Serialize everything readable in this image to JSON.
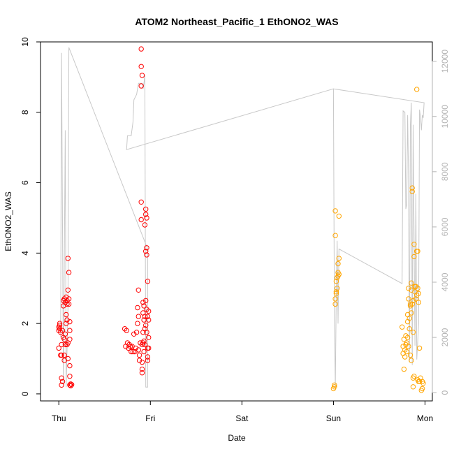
{
  "chart_data": {
    "type": "scatter",
    "title": "ATOM2 Northeast_Pacific_1 EthONO2_WAS",
    "xlabel": "Date",
    "ylabel": "EthONO2_WAS",
    "x_ticks": [
      "Thu",
      "Fri",
      "Sat",
      "Sun",
      "Mon"
    ],
    "xlim_days": [
      -0.2,
      4.08
    ],
    "y_left_lim": [
      -0.2,
      10.0
    ],
    "y_left_ticks": [
      0,
      2,
      4,
      6,
      8,
      10
    ],
    "y_right_lim": [
      -300,
      12700
    ],
    "y_right_ticks": [
      0,
      2000,
      4000,
      6000,
      8000,
      10000,
      12000
    ],
    "series": [
      {
        "color": "#ff0000",
        "marker": "open-circle",
        "points": [
          [
            0.0,
            1.9
          ],
          [
            0.0,
            1.8
          ],
          [
            0.0,
            1.3
          ],
          [
            0.01,
            1.85
          ],
          [
            0.01,
            1.95
          ],
          [
            0.01,
            2.0
          ],
          [
            0.02,
            1.1
          ],
          [
            0.02,
            1.75
          ],
          [
            0.03,
            1.4
          ],
          [
            0.03,
            1.1
          ],
          [
            0.03,
            0.45
          ],
          [
            0.03,
            0.25
          ],
          [
            0.04,
            0.35
          ],
          [
            0.04,
            1.8
          ],
          [
            0.05,
            2.5
          ],
          [
            0.05,
            2.65
          ],
          [
            0.05,
            1.6
          ],
          [
            0.06,
            2.7
          ],
          [
            0.06,
            1.1
          ],
          [
            0.06,
            0.95
          ],
          [
            0.06,
            1.55
          ],
          [
            0.07,
            2.6
          ],
          [
            0.07,
            1.7
          ],
          [
            0.07,
            1.4
          ],
          [
            0.08,
            2.0
          ],
          [
            0.08,
            2.25
          ],
          [
            0.08,
            2.75
          ],
          [
            0.09,
            2.65
          ],
          [
            0.09,
            2.55
          ],
          [
            0.09,
            2.1
          ],
          [
            0.09,
            1.4
          ],
          [
            0.1,
            1.45
          ],
          [
            0.1,
            1.0
          ],
          [
            0.1,
            2.95
          ],
          [
            0.1,
            3.85
          ],
          [
            0.11,
            3.45
          ],
          [
            0.11,
            2.7
          ],
          [
            0.11,
            2.55
          ],
          [
            0.12,
            2.05
          ],
          [
            0.12,
            1.8
          ],
          [
            0.12,
            1.55
          ],
          [
            0.12,
            0.8
          ],
          [
            0.12,
            0.5
          ],
          [
            0.12,
            0.25
          ],
          [
            0.13,
            0.28
          ],
          [
            0.13,
            0.23
          ],
          [
            0.14,
            0.26
          ],
          [
            0.72,
            1.85
          ],
          [
            0.73,
            1.35
          ],
          [
            0.74,
            1.8
          ],
          [
            0.75,
            1.45
          ],
          [
            0.76,
            1.3
          ],
          [
            0.77,
            1.4
          ],
          [
            0.78,
            1.35
          ],
          [
            0.79,
            1.2
          ],
          [
            0.8,
            1.35
          ],
          [
            0.81,
            1.2
          ],
          [
            0.82,
            1.7
          ],
          [
            0.83,
            1.2
          ],
          [
            0.84,
            1.3
          ],
          [
            0.85,
            1.75
          ],
          [
            0.86,
            2.45
          ],
          [
            0.86,
            2.0
          ],
          [
            0.87,
            1.25
          ],
          [
            0.87,
            2.2
          ],
          [
            0.87,
            2.95
          ],
          [
            0.88,
            1.1
          ],
          [
            0.88,
            0.95
          ],
          [
            0.89,
            1.45
          ],
          [
            0.9,
            9.8
          ],
          [
            0.9,
            9.3
          ],
          [
            0.9,
            8.75
          ],
          [
            0.9,
            5.45
          ],
          [
            0.9,
            4.95
          ],
          [
            0.91,
            9.05
          ],
          [
            0.91,
            1.4
          ],
          [
            0.91,
            0.9
          ],
          [
            0.91,
            0.6
          ],
          [
            0.91,
            0.7
          ],
          [
            0.92,
            2.6
          ],
          [
            0.92,
            2.3
          ],
          [
            0.92,
            1.75
          ],
          [
            0.92,
            1.45
          ],
          [
            0.93,
            2.5
          ],
          [
            0.93,
            2.1
          ],
          [
            0.93,
            1.5
          ],
          [
            0.93,
            1.2
          ],
          [
            0.94,
            4.8
          ],
          [
            0.94,
            2.2
          ],
          [
            0.94,
            1.85
          ],
          [
            0.94,
            1.4
          ],
          [
            0.95,
            5.25
          ],
          [
            0.95,
            5.1
          ],
          [
            0.95,
            4.05
          ],
          [
            0.95,
            2.65
          ],
          [
            0.95,
            1.95
          ],
          [
            0.96,
            5.0
          ],
          [
            0.96,
            4.15
          ],
          [
            0.96,
            3.95
          ],
          [
            0.96,
            2.4
          ],
          [
            0.96,
            1.75
          ],
          [
            0.97,
            3.2
          ],
          [
            0.97,
            2.2
          ],
          [
            0.97,
            1.3
          ],
          [
            0.97,
            1.05
          ],
          [
            0.97,
            0.95
          ],
          [
            0.98,
            2.1
          ],
          [
            0.98,
            2.35
          ],
          [
            0.98,
            1.6
          ],
          [
            0.98,
            1.3
          ]
        ]
      },
      {
        "color": "#ffa500",
        "marker": "open-circle",
        "points": [
          [
            3.0,
            0.15
          ],
          [
            3.01,
            0.2
          ],
          [
            3.01,
            0.25
          ],
          [
            3.02,
            4.5
          ],
          [
            3.02,
            5.2
          ],
          [
            3.02,
            2.55
          ],
          [
            3.02,
            2.7
          ],
          [
            3.03,
            3.2
          ],
          [
            3.03,
            2.9
          ],
          [
            3.03,
            2.85
          ],
          [
            3.04,
            3.3
          ],
          [
            3.04,
            3.0
          ],
          [
            3.05,
            3.7
          ],
          [
            3.05,
            3.45
          ],
          [
            3.05,
            3.35
          ],
          [
            3.06,
            3.4
          ],
          [
            3.06,
            3.85
          ],
          [
            3.06,
            5.05
          ],
          [
            3.75,
            1.9
          ],
          [
            3.76,
            1.15
          ],
          [
            3.76,
            1.35
          ],
          [
            3.77,
            1.55
          ],
          [
            3.77,
            0.7
          ],
          [
            3.78,
            1.05
          ],
          [
            3.78,
            1.25
          ],
          [
            3.79,
            1.4
          ],
          [
            3.79,
            1.65
          ],
          [
            3.8,
            1.2
          ],
          [
            3.8,
            1.45
          ],
          [
            3.81,
            2.05
          ],
          [
            3.81,
            1.6
          ],
          [
            3.81,
            2.25
          ],
          [
            3.82,
            1.35
          ],
          [
            3.82,
            2.7
          ],
          [
            3.82,
            3.0
          ],
          [
            3.83,
            2.15
          ],
          [
            3.83,
            1.85
          ],
          [
            3.84,
            2.5
          ],
          [
            3.84,
            2.55
          ],
          [
            3.84,
            1.1
          ],
          [
            3.85,
            3.15
          ],
          [
            3.85,
            2.95
          ],
          [
            3.85,
            2.3
          ],
          [
            3.85,
            0.95
          ],
          [
            3.86,
            5.75
          ],
          [
            3.86,
            5.85
          ],
          [
            3.86,
            2.55
          ],
          [
            3.87,
            2.65
          ],
          [
            3.87,
            1.75
          ],
          [
            3.87,
            0.2
          ],
          [
            3.87,
            0.45
          ],
          [
            3.88,
            4.25
          ],
          [
            3.88,
            3.9
          ],
          [
            3.88,
            0.5
          ],
          [
            3.89,
            2.9
          ],
          [
            3.89,
            3.05
          ],
          [
            3.9,
            2.7
          ],
          [
            3.9,
            3.05
          ],
          [
            3.91,
            4.05
          ],
          [
            3.91,
            2.8
          ],
          [
            3.91,
            8.65
          ],
          [
            3.92,
            4.05
          ],
          [
            3.92,
            3.0
          ],
          [
            3.92,
            0.4
          ],
          [
            3.93,
            2.6
          ],
          [
            3.93,
            2.85
          ],
          [
            3.93,
            0.35
          ],
          [
            3.94,
            1.3
          ],
          [
            3.94,
            0.35
          ],
          [
            3.95,
            0.45
          ],
          [
            3.96,
            0.1
          ],
          [
            3.97,
            0.15
          ],
          [
            3.97,
            0.35
          ],
          [
            3.98,
            0.3
          ]
        ]
      }
    ],
    "line": {
      "color": "#c8c8c8",
      "points": [
        [
          0.02,
          2000
        ],
        [
          0.03,
          12300
        ],
        [
          0.05,
          200
        ],
        [
          0.07,
          9500
        ],
        [
          0.08,
          200
        ],
        [
          0.1,
          3000
        ],
        [
          0.11,
          12500
        ],
        [
          0.97,
          5200
        ],
        [
          0.97,
          200
        ],
        [
          0.95,
          200
        ],
        [
          0.94,
          11500
        ],
        [
          0.93,
          11200
        ],
        [
          0.92,
          11000
        ],
        [
          0.91,
          11200
        ],
        [
          0.87,
          11200
        ],
        [
          0.85,
          10800
        ],
        [
          0.82,
          10600
        ],
        [
          0.81,
          9800
        ],
        [
          0.79,
          9300
        ],
        [
          0.75,
          9300
        ],
        [
          0.74,
          8800
        ],
        [
          3.0,
          11000
        ],
        [
          3.01,
          2500
        ],
        [
          3.02,
          200
        ],
        [
          3.03,
          3500
        ],
        [
          3.04,
          5500
        ],
        [
          3.05,
          2500
        ],
        [
          3.06,
          5200
        ],
        [
          3.75,
          3950
        ],
        [
          3.76,
          10200
        ],
        [
          3.78,
          10150
        ],
        [
          3.79,
          6650
        ],
        [
          3.8,
          6800
        ],
        [
          3.81,
          10050
        ],
        [
          3.82,
          7850
        ],
        [
          3.83,
          1100
        ],
        [
          3.84,
          9700
        ],
        [
          3.85,
          10500
        ],
        [
          3.86,
          1000
        ],
        [
          3.87,
          9700
        ],
        [
          3.89,
          1700
        ],
        [
          3.9,
          7200
        ],
        [
          3.91,
          1200
        ],
        [
          3.92,
          1800
        ],
        [
          3.93,
          2500
        ],
        [
          3.94,
          10250
        ],
        [
          3.95,
          10000
        ],
        [
          3.96,
          9500
        ],
        [
          3.97,
          10050
        ],
        [
          3.98,
          9950
        ],
        [
          3.99,
          10500
        ],
        [
          3.0,
          11000
        ]
      ]
    }
  }
}
